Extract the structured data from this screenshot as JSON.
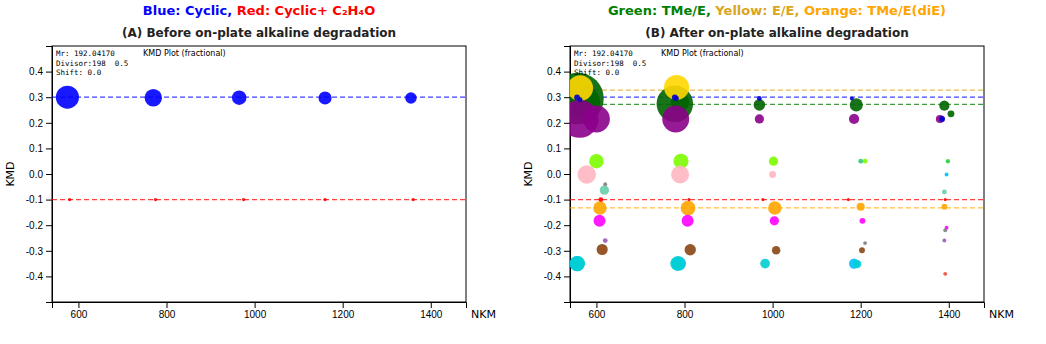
{
  "chart_data": [
    {
      "type": "scatter",
      "heading": [
        {
          "text": "Blue: Cyclic,",
          "color": "blue"
        },
        {
          "text": " Red: Cyclic+ C₂H₄O",
          "color": "red"
        }
      ],
      "title": "(A) Before on-plate alkaline degradation",
      "info_text": [
        "Mr: 192.04170",
        "Divisor:198  0.5",
        "Shift: 0.0"
      ],
      "kmd_label": "KMD Plot (fractional)",
      "xlabel": "NKM",
      "ylabel": "KMD",
      "xlim": [
        540,
        1480
      ],
      "ylim": [
        -0.5,
        0.5
      ],
      "xticks": [
        600,
        800,
        1000,
        1200,
        1400
      ],
      "yticks": [
        -0.4,
        -0.3,
        -0.2,
        -0.1,
        {
          "value": 0.0,
          "label": "0.0"
        },
        0.1,
        0.2,
        0.3,
        0.4
      ],
      "reference_lines": [
        {
          "value": 0.3,
          "color": "blue",
          "line_style": "dashed"
        },
        {
          "value": -0.1,
          "color": "red",
          "line_style": "dashed"
        }
      ],
      "series": [
        {
          "color": "blue",
          "x": [
            575,
            770,
            965,
            1160,
            1355
          ],
          "values": [
            0.3,
            0.298,
            0.298,
            0.297,
            0.297
          ],
          "sizes": [
            280,
            160,
            110,
            90,
            70
          ]
        },
        {
          "color": "red",
          "x": [
            580,
            775,
            975,
            1160,
            1360
          ],
          "values": [
            -0.1,
            -0.1,
            -0.1,
            -0.1,
            -0.1
          ],
          "sizes": [
            6,
            6,
            6,
            6,
            6
          ]
        }
      ]
    },
    {
      "type": "scatter",
      "heading": [
        {
          "text": "Green: TMe/E,",
          "color": "#008000"
        },
        {
          "text": " Yellow: E/E,",
          "color": "#DAA520"
        },
        {
          "text": " Orange: TMe/E(diE)",
          "color": "orange"
        }
      ],
      "title": "(B) After on-plate alkaline degradation",
      "info_text": [
        "Mr: 192.04170",
        "Divisor:198  0.5",
        "Shift: 0.0"
      ],
      "kmd_label": "KMD Plot (fractional)",
      "xlabel": "NKM",
      "ylabel": "KMD",
      "xlim": [
        540,
        1480
      ],
      "ylim": [
        -0.5,
        0.5
      ],
      "xticks": [
        600,
        800,
        1000,
        1200,
        1400
      ],
      "yticks": [
        -0.4,
        -0.3,
        -0.2,
        -0.1,
        {
          "value": 0.0,
          "label": "0.0"
        },
        0.1,
        0.2,
        0.3,
        0.4
      ],
      "reference_lines": [
        {
          "value": 0.3,
          "color": "blue",
          "line_style": "dashed"
        },
        {
          "value": 0.272,
          "color": "#008000",
          "line_style": "dashed"
        },
        {
          "value": 0.328,
          "color": "#DAA520",
          "line_style": "dashed"
        },
        {
          "value": -0.1,
          "color": "red",
          "line_style": "dashed"
        },
        {
          "value": -0.132,
          "color": "orange",
          "line_style": "dashed"
        }
      ],
      "series": [
        {
          "color": "#006400",
          "x": [
            558,
            570,
            778,
            790,
            970,
            1190,
            1390,
            1405
          ],
          "values": [
            0.295,
            0.28,
            0.274,
            0.28,
            0.27,
            0.27,
            0.267,
            0.235
          ],
          "sizes": [
            1400,
            600,
            700,
            180,
            70,
            90,
            55,
            25
          ]
        },
        {
          "color": "#FFD700",
          "x": [
            563,
            782
          ],
          "values": [
            0.335,
            0.338
          ],
          "sizes": [
            350,
            330
          ]
        },
        {
          "color": "#8B008B",
          "x": [
            562,
            600,
            780,
            970,
            1185,
            1380
          ],
          "values": [
            0.215,
            0.215,
            0.215,
            0.215,
            0.215,
            0.215
          ],
          "sizes": [
            750,
            380,
            380,
            45,
            55,
            35
          ]
        },
        {
          "color": "#0000CD",
          "x": [
            556,
            563,
            778,
            782,
            970,
            1180,
            1385
          ],
          "values": [
            0.299,
            0.29,
            0.299,
            0.295,
            0.295,
            0.295,
            0.215
          ],
          "sizes": [
            18,
            12,
            18,
            12,
            12,
            8,
            18
          ]
        },
        {
          "color": "#7CFC00",
          "x": [
            600,
            792,
            1002,
            1210,
            1398
          ],
          "values": [
            0.05,
            0.05,
            0.05,
            0.05,
            0.05
          ],
          "sizes": [
            110,
            120,
            45,
            12,
            10
          ]
        },
        {
          "color": "#FFB6C1",
          "x": [
            578,
            790,
            1000
          ],
          "values": [
            -0.002,
            -0.002,
            -0.002
          ],
          "sizes": [
            180,
            170,
            25
          ]
        },
        {
          "color": "#00BFFF",
          "x": [
            556,
            787,
            1185,
            1395
          ],
          "values": [
            -0.35,
            -0.35,
            -0.35,
            -0.002
          ],
          "sizes": [
            120,
            110,
            55,
            8
          ]
        },
        {
          "color": "#66CDAA",
          "x": [
            618,
            1390
          ],
          "values": [
            -0.063,
            -0.07
          ],
          "sizes": [
            45,
            12
          ]
        },
        {
          "color": "#FFA500",
          "x": [
            608,
            808,
            1005,
            1200,
            1390
          ],
          "values": [
            -0.133,
            -0.133,
            -0.133,
            -0.128,
            -0.128
          ],
          "sizes": [
            95,
            115,
            95,
            35,
            18
          ]
        },
        {
          "color": "#FF0000",
          "x": [
            610,
            810,
            978,
            1172,
            1392
          ],
          "values": [
            -0.1,
            -0.1,
            -0.1,
            -0.1,
            -0.1
          ],
          "sizes": [
            12,
            5,
            5,
            5,
            5
          ]
        },
        {
          "color": "#FF00FF",
          "x": [
            607,
            807,
            1004,
            1204,
            1395
          ],
          "values": [
            -0.183,
            -0.183,
            -0.183,
            -0.183,
            -0.21
          ],
          "sizes": [
            75,
            75,
            45,
            18,
            8
          ]
        },
        {
          "color": "#8B4513",
          "x": [
            613,
            813,
            1008,
            1203
          ],
          "values": [
            -0.295,
            -0.296,
            -0.298,
            -0.298
          ],
          "sizes": [
            65,
            68,
            38,
            18
          ]
        },
        {
          "color": "#00CED1",
          "x": [
            557,
            784,
            983,
            1192
          ],
          "values": [
            -0.35,
            -0.35,
            -0.35,
            -0.352
          ],
          "sizes": [
            120,
            110,
            50,
            35
          ]
        },
        {
          "color": "#9B59B6",
          "x": [
            620,
            1390
          ],
          "values": [
            -0.26,
            -0.26
          ],
          "sizes": [
            12,
            8
          ]
        },
        {
          "color": "#E74C3C",
          "x": [
            1392
          ],
          "values": [
            -0.39
          ],
          "sizes": [
            8
          ]
        },
        {
          "color": "#2ECC71",
          "x": [
            1200,
            1398
          ],
          "values": [
            0.05,
            0.05
          ],
          "sizes": [
            12,
            8
          ]
        },
        {
          "color": "#808080",
          "x": [
            620,
            1210,
            1392
          ],
          "values": [
            -0.04,
            -0.27,
            -0.22
          ],
          "sizes": [
            8,
            8,
            8
          ]
        }
      ]
    }
  ]
}
